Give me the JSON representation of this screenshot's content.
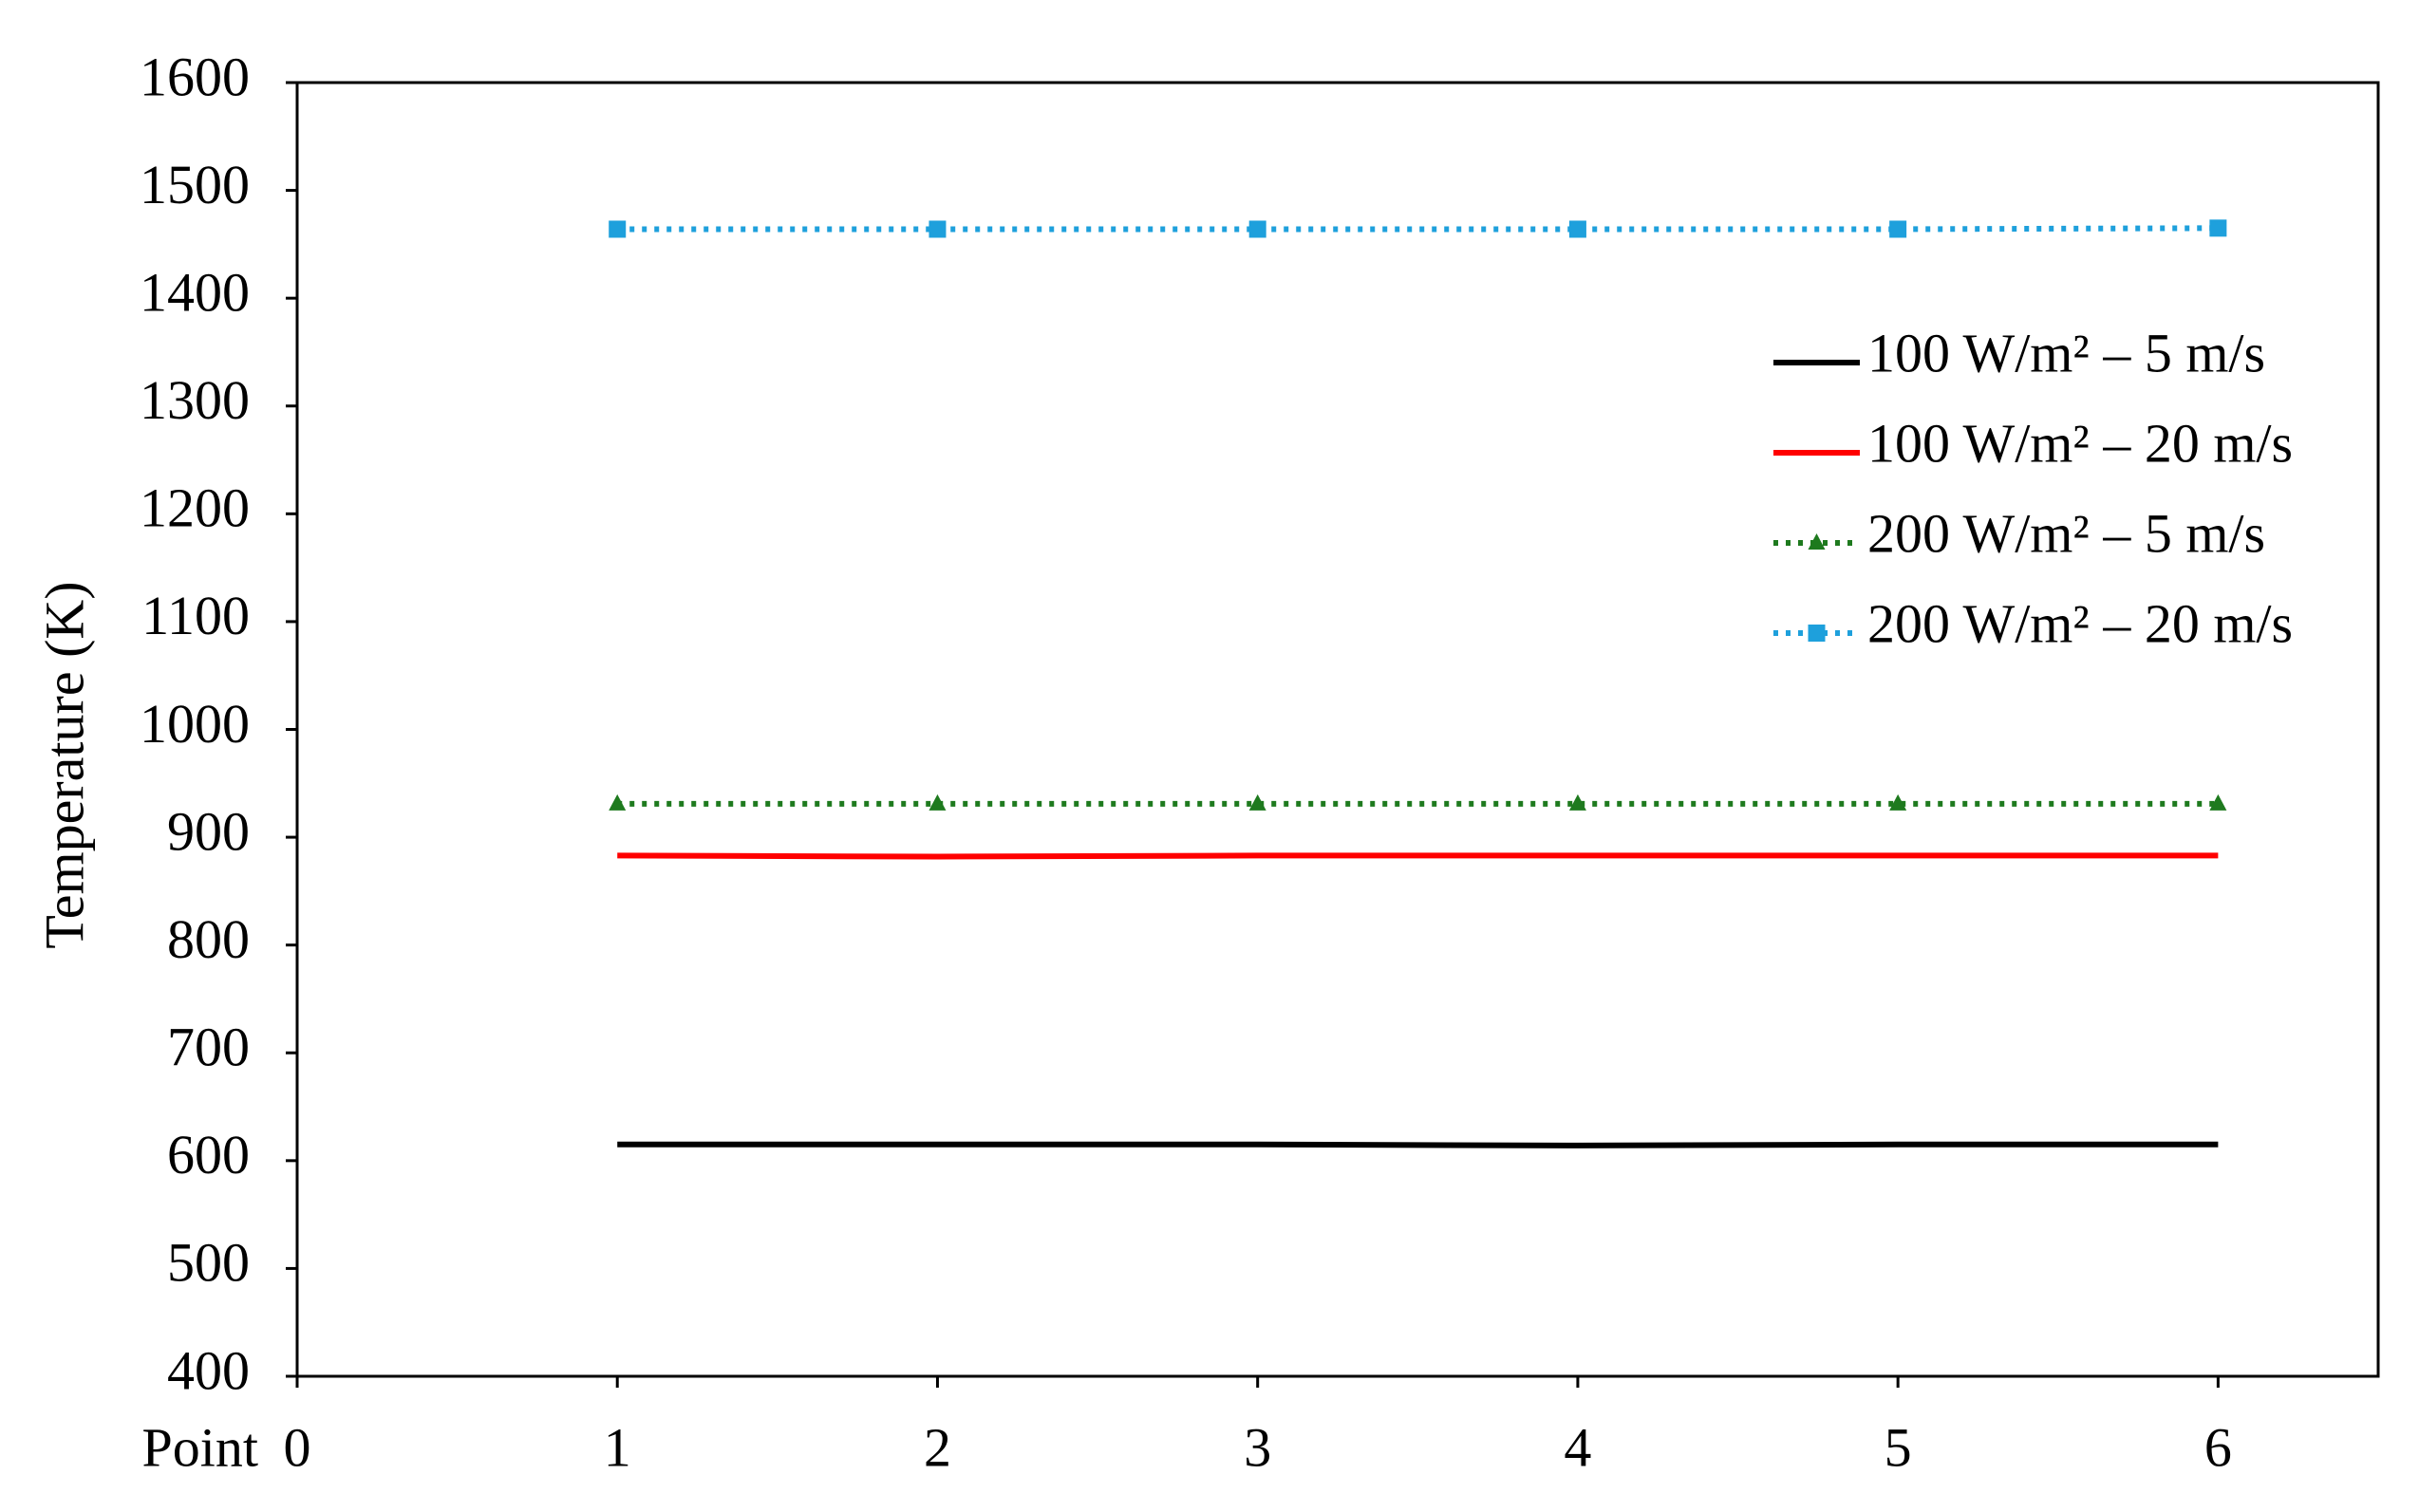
{
  "chart_data": {
    "type": "line",
    "x_label": "Point",
    "y_label": "Temperature (K)",
    "x": [
      1,
      2,
      3,
      4,
      5,
      6
    ],
    "series": [
      {
        "name": "100 W/m² – 5 m/s",
        "color": "#000000",
        "dash": "solid",
        "marker": "none",
        "values": [
          615,
          615,
          615,
          614,
          615,
          615
        ]
      },
      {
        "name": "100 W/m² – 20 m/s",
        "color": "#ff0000",
        "dash": "solid",
        "marker": "none",
        "values": [
          883,
          882,
          883,
          883,
          883,
          883
        ]
      },
      {
        "name": "200 W/m² – 5 m/s",
        "color": "#1e7a1e",
        "dash": "dotted",
        "marker": "triangle",
        "values": [
          931,
          931,
          931,
          931,
          931,
          931
        ]
      },
      {
        "name": "200 W/m² – 20 m/s",
        "color": "#1ea0dc",
        "dash": "dotted",
        "marker": "square",
        "values": [
          1464,
          1464,
          1464,
          1464,
          1464,
          1465
        ]
      }
    ],
    "xlim": [
      0,
      6.5
    ],
    "xticks": [
      0,
      1,
      2,
      3,
      4,
      5,
      6
    ],
    "ylim": [
      400,
      1600
    ],
    "yticks": [
      400,
      500,
      600,
      700,
      800,
      900,
      1000,
      1100,
      1200,
      1300,
      1400,
      1500,
      1600
    ],
    "grid": false
  }
}
